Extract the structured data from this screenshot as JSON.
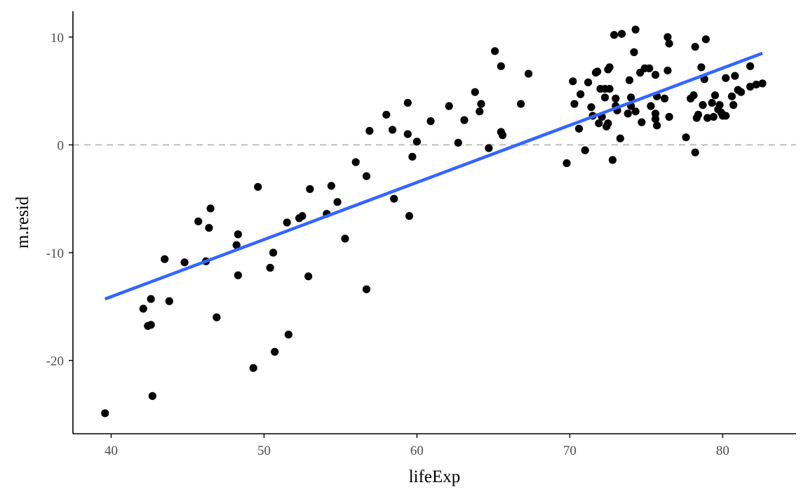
{
  "chart_data": {
    "type": "scatter",
    "xlabel": "lifeExp",
    "ylabel": "m.resid",
    "xlim": [
      37.5,
      84.8
    ],
    "ylim": [
      -26.8,
      12.4
    ],
    "xticks": [
      40,
      50,
      60,
      70,
      80
    ],
    "yticks": [
      -20,
      -10,
      0,
      10
    ],
    "xtick_labels": [
      "40",
      "50",
      "60",
      "70",
      "80"
    ],
    "ytick_labels": [
      "-20",
      "-10",
      "0",
      "10"
    ],
    "grid": false,
    "reference_line": {
      "y": 0,
      "style": "dashed",
      "color": "#bebebe"
    },
    "fit_line": {
      "x": [
        39.6,
        82.6
      ],
      "y": [
        -14.3,
        8.5
      ],
      "color": "#3366ff"
    },
    "point_color": "#000000",
    "points": [
      [
        39.6,
        -24.9
      ],
      [
        42.1,
        -15.2
      ],
      [
        42.4,
        -16.8
      ],
      [
        42.6,
        -16.7
      ],
      [
        42.6,
        -14.3
      ],
      [
        42.7,
        -23.3
      ],
      [
        43.5,
        -10.6
      ],
      [
        43.8,
        -14.5
      ],
      [
        44.8,
        -10.9
      ],
      [
        45.7,
        -7.1
      ],
      [
        46.2,
        -10.8
      ],
      [
        46.4,
        -7.7
      ],
      [
        46.5,
        -5.9
      ],
      [
        46.9,
        -16.0
      ],
      [
        48.2,
        -9.3
      ],
      [
        48.3,
        -8.3
      ],
      [
        48.3,
        -12.1
      ],
      [
        49.3,
        -20.7
      ],
      [
        49.6,
        -3.9
      ],
      [
        50.4,
        -11.4
      ],
      [
        50.6,
        -10.0
      ],
      [
        50.7,
        -19.2
      ],
      [
        51.5,
        -7.2
      ],
      [
        51.6,
        -17.6
      ],
      [
        52.3,
        -6.8
      ],
      [
        52.5,
        -6.6
      ],
      [
        52.9,
        -12.2
      ],
      [
        53.0,
        -4.1
      ],
      [
        54.1,
        -6.4
      ],
      [
        54.4,
        -3.8
      ],
      [
        54.8,
        -5.3
      ],
      [
        55.3,
        -8.7
      ],
      [
        56.0,
        -1.6
      ],
      [
        56.7,
        -2.9
      ],
      [
        56.7,
        -13.4
      ],
      [
        56.9,
        1.3
      ],
      [
        58.0,
        2.8
      ],
      [
        58.4,
        1.4
      ],
      [
        58.5,
        -5.0
      ],
      [
        59.4,
        3.9
      ],
      [
        59.4,
        1.0
      ],
      [
        59.5,
        -6.6
      ],
      [
        59.7,
        -1.1
      ],
      [
        60.0,
        0.3
      ],
      [
        60.9,
        2.2
      ],
      [
        62.1,
        3.6
      ],
      [
        62.7,
        0.2
      ],
      [
        63.1,
        2.3
      ],
      [
        63.8,
        4.9
      ],
      [
        64.1,
        3.1
      ],
      [
        64.2,
        3.8
      ],
      [
        64.7,
        -0.3
      ],
      [
        65.1,
        8.7
      ],
      [
        65.5,
        1.2
      ],
      [
        65.5,
        7.3
      ],
      [
        65.6,
        0.9
      ],
      [
        66.8,
        3.8
      ],
      [
        67.3,
        6.6
      ],
      [
        69.8,
        -1.7
      ],
      [
        70.2,
        5.9
      ],
      [
        70.3,
        3.8
      ],
      [
        70.6,
        1.5
      ],
      [
        70.7,
        4.7
      ],
      [
        71.0,
        -0.5
      ],
      [
        71.2,
        5.8
      ],
      [
        71.4,
        3.5
      ],
      [
        71.5,
        2.7
      ],
      [
        71.7,
        6.7
      ],
      [
        71.8,
        6.8
      ],
      [
        71.9,
        2.0
      ],
      [
        72.0,
        5.2
      ],
      [
        72.1,
        2.6
      ],
      [
        72.3,
        5.2
      ],
      [
        72.3,
        4.4
      ],
      [
        72.4,
        1.7
      ],
      [
        72.5,
        7.0
      ],
      [
        72.5,
        2.0
      ],
      [
        72.6,
        7.2
      ],
      [
        72.6,
        5.2
      ],
      [
        72.8,
        -1.4
      ],
      [
        72.9,
        10.2
      ],
      [
        73.0,
        3.6
      ],
      [
        73.0,
        4.3
      ],
      [
        73.1,
        3.2
      ],
      [
        73.3,
        0.6
      ],
      [
        73.4,
        10.3
      ],
      [
        73.8,
        2.9
      ],
      [
        73.9,
        6.0
      ],
      [
        74.0,
        4.4
      ],
      [
        74.0,
        3.6
      ],
      [
        74.2,
        8.6
      ],
      [
        74.3,
        10.7
      ],
      [
        74.3,
        3.1
      ],
      [
        74.6,
        6.7
      ],
      [
        74.7,
        2.1
      ],
      [
        74.9,
        7.1
      ],
      [
        75.2,
        7.1
      ],
      [
        75.3,
        3.6
      ],
      [
        75.6,
        6.5
      ],
      [
        75.6,
        2.9
      ],
      [
        75.6,
        2.4
      ],
      [
        75.7,
        1.8
      ],
      [
        75.7,
        4.5
      ],
      [
        76.2,
        4.3
      ],
      [
        76.4,
        6.9
      ],
      [
        76.4,
        10.0
      ],
      [
        76.5,
        9.4
      ],
      [
        76.5,
        2.6
      ],
      [
        77.6,
        0.7
      ],
      [
        77.9,
        4.3
      ],
      [
        78.1,
        4.6
      ],
      [
        78.2,
        -0.7
      ],
      [
        78.2,
        9.1
      ],
      [
        78.3,
        2.5
      ],
      [
        78.4,
        2.8
      ],
      [
        78.6,
        7.2
      ],
      [
        78.7,
        3.7
      ],
      [
        78.8,
        6.1
      ],
      [
        78.9,
        9.8
      ],
      [
        79.0,
        2.5
      ],
      [
        79.3,
        3.9
      ],
      [
        79.4,
        2.6
      ],
      [
        79.5,
        4.6
      ],
      [
        79.7,
        3.3
      ],
      [
        79.8,
        3.7
      ],
      [
        79.9,
        3.0
      ],
      [
        80.0,
        2.7
      ],
      [
        80.2,
        6.2
      ],
      [
        80.2,
        2.7
      ],
      [
        80.6,
        4.5
      ],
      [
        80.7,
        3.7
      ],
      [
        80.8,
        6.4
      ],
      [
        81.0,
        5.1
      ],
      [
        81.2,
        4.9
      ],
      [
        81.8,
        5.4
      ],
      [
        81.8,
        7.3
      ],
      [
        82.2,
        5.6
      ],
      [
        82.6,
        5.7
      ]
    ]
  }
}
